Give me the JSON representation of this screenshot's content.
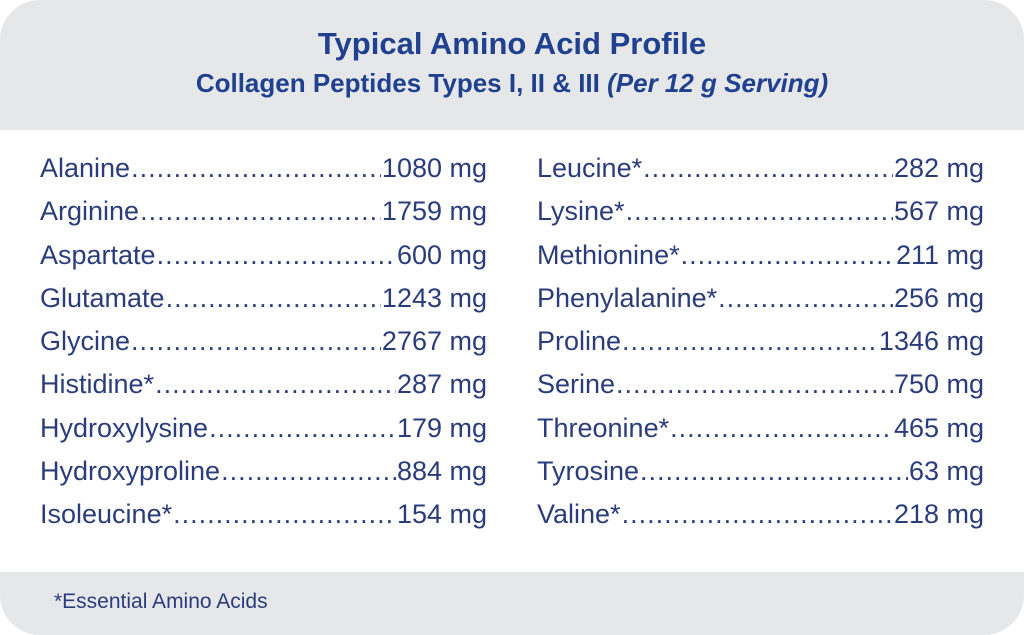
{
  "header": {
    "title": "Typical Amino Acid Profile",
    "subtitle": "Collagen Peptides Types I, II & III",
    "subtitle_italic": "(Per 12 g Serving)"
  },
  "left": [
    {
      "name": "Alanine",
      "amount": "1080 mg"
    },
    {
      "name": "Arginine",
      "amount": "1759 mg"
    },
    {
      "name": "Aspartate",
      "amount": "600 mg"
    },
    {
      "name": "Glutamate",
      "amount": "1243 mg"
    },
    {
      "name": "Glycine",
      "amount": "2767 mg"
    },
    {
      "name": "Histidine*",
      "amount": "287 mg"
    },
    {
      "name": "Hydroxylysine",
      "amount": "179 mg"
    },
    {
      "name": "Hydroxyproline",
      "amount": "884 mg"
    },
    {
      "name": "Isoleucine*",
      "amount": "154 mg"
    }
  ],
  "right": [
    {
      "name": "Leucine*",
      "amount": "282 mg"
    },
    {
      "name": "Lysine*",
      "amount": "567 mg"
    },
    {
      "name": "Methionine*",
      "amount": "211 mg"
    },
    {
      "name": "Phenylalanine*",
      "amount": "256 mg"
    },
    {
      "name": "Proline",
      "amount": "1346 mg"
    },
    {
      "name": "Serine",
      "amount": "750 mg"
    },
    {
      "name": "Threonine*",
      "amount": "465 mg"
    },
    {
      "name": "Tyrosine",
      "amount": "63 mg"
    },
    {
      "name": "Valine*",
      "amount": "218 mg"
    }
  ],
  "footer": {
    "note": "*Essential Amino Acids"
  },
  "colors": {
    "heading": "#20418f",
    "text": "#2a3c7c",
    "band": "#e6e7e9"
  }
}
